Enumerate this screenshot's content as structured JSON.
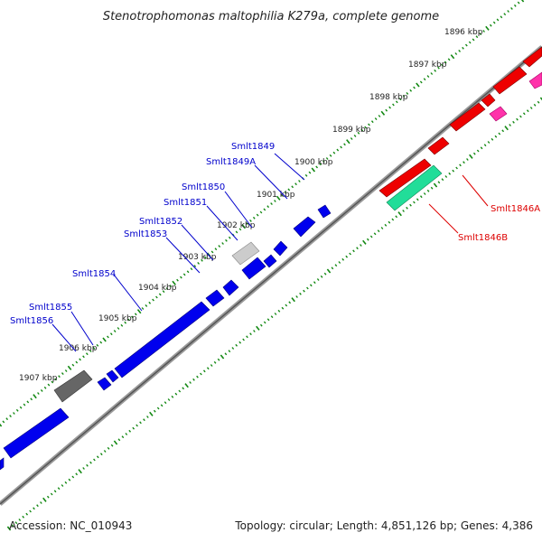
{
  "title": "Stenotrophomonas maltophilia K279a, complete genome",
  "footer": {
    "accession": "Accession: NC_010943",
    "topology": "Topology: circular; Length: 4,851,126 bp; Genes: 4,386"
  },
  "scale_labels": [
    "1896 kbp",
    "1897 kbp",
    "1898 kbp",
    "1899 kbp",
    "1900 kbp",
    "1901 kbp",
    "1902 kbp",
    "1903 kbp",
    "1904 kbp",
    "1905 kbp",
    "1906 kbp",
    "1907 kbp"
  ],
  "gene_labels_forward": [
    "Smlt1849",
    "Smlt1849A",
    "Smlt1850",
    "Smlt1851",
    "Smlt1852",
    "Smlt1853",
    "Smlt1854",
    "Smlt1855",
    "Smlt1856"
  ],
  "gene_labels_reverse": [
    "Smlt1846A",
    "Smlt1846B"
  ],
  "colors": {
    "forward_gene": "#0000ee",
    "reverse_gene": "#ee0000",
    "reverse_rna": "#22dd99",
    "misc_feature": "#ff33aa",
    "pseudo_dark": "#666666",
    "pseudo_light": "#cccccc",
    "backbone": "#888888",
    "tick": "#118811",
    "forward_label": "#0000cc",
    "reverse_label": "#dd0000"
  }
}
